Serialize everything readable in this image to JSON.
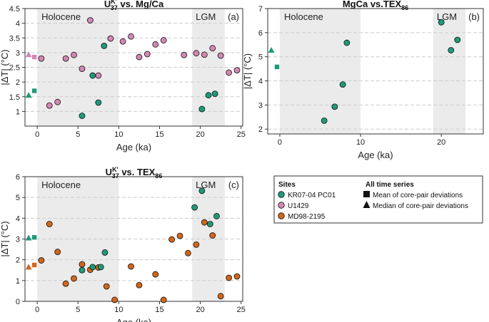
{
  "colors": {
    "kr": "#1f9a78",
    "u1429": "#d487b3",
    "md": "#d2661a",
    "shade": "#ebebeb",
    "grid": "#cccccc"
  },
  "legend": {
    "sites_title": "Sites",
    "sites": [
      {
        "label": "KR07-04 PC01",
        "color_key": "kr"
      },
      {
        "label": "U1429",
        "color_key": "u1429"
      },
      {
        "label": "MD98-2195",
        "color_key": "md"
      }
    ],
    "ts_title": "All time series",
    "ts": [
      {
        "label": "Mean of core-pair deviations",
        "symbol": "square"
      },
      {
        "label": "Median of core-pair deviations",
        "symbol": "triangle"
      }
    ]
  },
  "chart_data": [
    {
      "id": "a",
      "type": "scatter",
      "title_main": "U",
      "title_sup": "K'",
      "title_sub": "37",
      "title_rest": " vs. Mg/Ca",
      "panel_label": "(a)",
      "xlabel": "Age (ka)",
      "ylabel": "|ΔT| (°C)",
      "xlim": [
        -1.5,
        25.2
      ],
      "ylim": [
        0.5,
        4.5
      ],
      "xticks": [
        0,
        5,
        10,
        15,
        20,
        25
      ],
      "yticks": [
        1,
        1.5,
        2,
        2.5,
        3,
        3.5,
        4,
        4.5
      ],
      "ytick_labels": [
        "1",
        "1.5",
        "2",
        "2.5",
        "3",
        "3.5",
        "4",
        "4.5"
      ],
      "regions": [
        {
          "name": "Holocene",
          "from": 0,
          "to": 10
        },
        {
          "name": "LGM",
          "from": 19,
          "to": 23
        }
      ],
      "series": [
        {
          "name": "U1429",
          "color_key": "u1429",
          "x": [
            0.5,
            1.5,
            2.5,
            3.5,
            4.5,
            5.5,
            6.5,
            7.5,
            9,
            10.5,
            11.5,
            12.5,
            13.5,
            14.5,
            15.5,
            18,
            19.5,
            20.5,
            21.5,
            22.5,
            23.5,
            24.5
          ],
          "y": [
            2.8,
            1.2,
            1.32,
            2.8,
            2.92,
            2.45,
            4.1,
            2.22,
            3.48,
            3.38,
            3.55,
            2.85,
            2.95,
            3.28,
            3.42,
            2.92,
            2.98,
            2.93,
            3.15,
            2.9,
            2.32,
            2.4
          ]
        },
        {
          "name": "KR07-04 PC01",
          "color_key": "kr",
          "x": [
            5.5,
            7.5,
            6.8,
            8.2,
            20.2,
            21,
            21.8
          ],
          "y": [
            0.85,
            1.3,
            2.22,
            3.23,
            1.08,
            1.55,
            1.6
          ]
        }
      ],
      "summary": [
        {
          "site": "U1429",
          "stat": "median",
          "value": 2.93
        },
        {
          "site": "U1429",
          "stat": "mean",
          "value": 2.85
        },
        {
          "site": "KR07-04 PC01",
          "stat": "median",
          "value": 1.55
        },
        {
          "site": "KR07-04 PC01",
          "stat": "mean",
          "value": 1.7
        }
      ]
    },
    {
      "id": "b",
      "type": "scatter",
      "title_main": "MgCa vs.TEX",
      "title_sup": "",
      "title_sub": "86",
      "title_rest": "",
      "panel_label": "(b)",
      "xlabel": "Age (ka)",
      "ylabel": "|ΔT| (°C)",
      "xlim": [
        -1.5,
        25.2
      ],
      "ylim": [
        1.8,
        7
      ],
      "xticks": [
        0,
        10,
        20
      ],
      "yticks": [
        2,
        3,
        4,
        5,
        6,
        7
      ],
      "ytick_labels": [
        "2",
        "3",
        "4",
        "5",
        "6",
        "7"
      ],
      "regions": [
        {
          "name": "Holocene",
          "from": 0,
          "to": 10
        },
        {
          "name": "LGM",
          "from": 19,
          "to": 23
        }
      ],
      "series": [
        {
          "name": "KR07-04 PC01",
          "color_key": "kr",
          "x": [
            5.5,
            6.8,
            7.8,
            8.3,
            20,
            21.2,
            22
          ],
          "y": [
            2.35,
            2.93,
            3.85,
            5.58,
            6.43,
            5.27,
            5.7
          ]
        }
      ],
      "summary": [
        {
          "site": "KR07-04 PC01",
          "stat": "median",
          "value": 5.27
        },
        {
          "site": "KR07-04 PC01",
          "stat": "mean",
          "value": 4.58
        }
      ]
    },
    {
      "id": "c",
      "type": "scatter",
      "title_main": "U",
      "title_sup": "K'",
      "title_sub": "37",
      "title_rest": " vs. TEX",
      "title_sub2": "86",
      "panel_label": "(c)",
      "xlabel": "Age (ka)",
      "ylabel": "|ΔT| (°C)",
      "xlim": [
        -1.5,
        25.2
      ],
      "ylim": [
        0,
        6
      ],
      "xticks": [
        0,
        5,
        10,
        15,
        20,
        25
      ],
      "yticks": [
        0,
        1,
        2,
        3,
        4,
        5,
        6
      ],
      "ytick_labels": [
        "0",
        "1",
        "2",
        "3",
        "4",
        "5",
        "6"
      ],
      "regions": [
        {
          "name": "Holocene",
          "from": 0,
          "to": 10
        },
        {
          "name": "LGM",
          "from": 19,
          "to": 23
        }
      ],
      "series": [
        {
          "name": "MD98-2195",
          "color_key": "md",
          "x": [
            0.5,
            1.5,
            2.5,
            3.5,
            4.5,
            5.5,
            6.5,
            7.5,
            8.5,
            9.5,
            11.5,
            12.5,
            14.5,
            15.5,
            16.5,
            17.5,
            18.5,
            19.5,
            20.5,
            21.5,
            22.5,
            23.5,
            24.5
          ],
          "y": [
            1.97,
            3.72,
            2.38,
            0.85,
            1.1,
            1.78,
            1.52,
            1.63,
            0.72,
            0.07,
            1.68,
            0.78,
            1.3,
            0.07,
            2.98,
            3.15,
            2.32,
            2.73,
            3.8,
            3.17,
            0.25,
            1.13,
            1.2
          ]
        },
        {
          "name": "KR07-04 PC01",
          "color_key": "kr",
          "x": [
            5.5,
            6.8,
            7.8,
            8.3,
            19.3,
            20.2,
            21.2,
            22
          ],
          "y": [
            1.5,
            1.65,
            1.65,
            2.35,
            4.52,
            5.32,
            3.72,
            4.1
          ]
        }
      ],
      "summary": [
        {
          "site": "KR07-04 PC01",
          "stat": "median",
          "value": 3.05
        },
        {
          "site": "KR07-04 PC01",
          "stat": "mean",
          "value": 3.08
        },
        {
          "site": "MD98-2195",
          "stat": "median",
          "value": 1.65
        },
        {
          "site": "MD98-2195",
          "stat": "mean",
          "value": 1.75
        }
      ]
    }
  ]
}
